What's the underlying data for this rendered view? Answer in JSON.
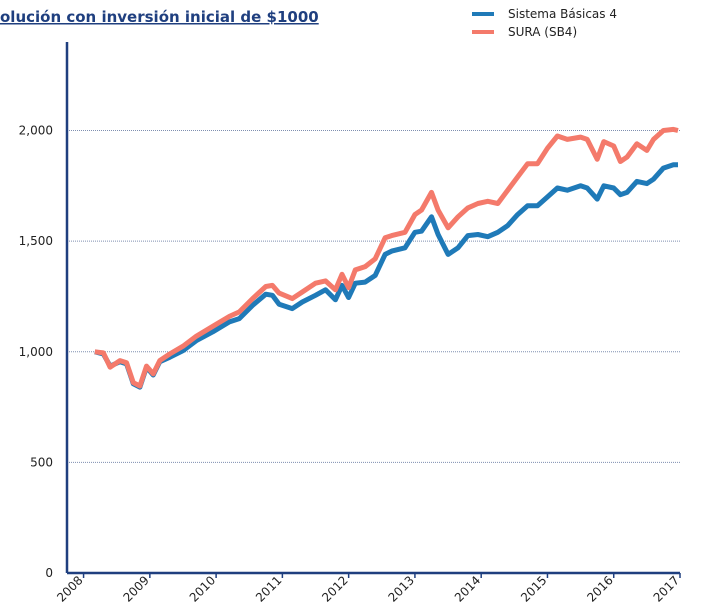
{
  "chart_data": {
    "type": "line",
    "title": "olución con inversión inicial de $1000",
    "x": [
      2008.17,
      2008.3,
      2008.4,
      2008.55,
      2008.65,
      2008.75,
      2008.85,
      2008.95,
      2009.05,
      2009.15,
      2009.3,
      2009.5,
      2009.7,
      2009.95,
      2010.2,
      2010.35,
      2010.55,
      2010.75,
      2010.85,
      2010.95,
      2011.15,
      2011.3,
      2011.5,
      2011.65,
      2011.8,
      2011.9,
      2012.0,
      2012.1,
      2012.25,
      2012.4,
      2012.55,
      2012.65,
      2012.85,
      2013.0,
      2013.1,
      2013.25,
      2013.35,
      2013.5,
      2013.65,
      2013.8,
      2013.95,
      2014.1,
      2014.25,
      2014.4,
      2014.55,
      2014.7,
      2014.85,
      2015.0,
      2015.15,
      2015.3,
      2015.5,
      2015.6,
      2015.75,
      2015.85,
      2016.0,
      2016.1,
      2016.2,
      2016.35,
      2016.5,
      2016.6,
      2016.75,
      2016.9,
      2016.97
    ],
    "series": [
      {
        "name": "Sistema Básicas 4",
        "color": "#1f7ab8",
        "values": [
          1000,
          990,
          935,
          955,
          945,
          855,
          840,
          930,
          895,
          955,
          975,
          1005,
          1050,
          1090,
          1135,
          1150,
          1210,
          1260,
          1255,
          1215,
          1195,
          1225,
          1255,
          1280,
          1235,
          1300,
          1245,
          1310,
          1315,
          1345,
          1440,
          1455,
          1470,
          1540,
          1545,
          1610,
          1530,
          1440,
          1470,
          1525,
          1530,
          1520,
          1540,
          1570,
          1620,
          1660,
          1660,
          1700,
          1740,
          1730,
          1750,
          1740,
          1690,
          1750,
          1740,
          1710,
          1720,
          1770,
          1760,
          1780,
          1830,
          1845,
          1845
        ]
      },
      {
        "name": "SURA (SB4)",
        "color": "#f47a6b",
        "values": [
          1000,
          995,
          930,
          960,
          950,
          860,
          845,
          935,
          900,
          960,
          990,
          1025,
          1070,
          1115,
          1160,
          1180,
          1240,
          1295,
          1300,
          1265,
          1240,
          1270,
          1310,
          1320,
          1280,
          1350,
          1290,
          1370,
          1385,
          1420,
          1515,
          1525,
          1540,
          1620,
          1640,
          1720,
          1640,
          1560,
          1610,
          1650,
          1670,
          1680,
          1670,
          1730,
          1790,
          1850,
          1850,
          1920,
          1975,
          1960,
          1970,
          1960,
          1870,
          1950,
          1930,
          1860,
          1880,
          1940,
          1910,
          1960,
          2000,
          2005,
          2000
        ]
      }
    ],
    "xlim": [
      2007.75,
      2017
    ],
    "xticks": [
      2008,
      2009,
      2010,
      2011,
      2012,
      2013,
      2014,
      2015,
      2016,
      2017
    ],
    "ylim": [
      0,
      2400
    ],
    "yticks": [
      0,
      500,
      {
        "value": 1000,
        "label": "1,000"
      },
      {
        "value": 1500,
        "label": "1,500"
      },
      {
        "value": 2000,
        "label": "2,000"
      }
    ],
    "grid": true,
    "legend": "top-right"
  }
}
